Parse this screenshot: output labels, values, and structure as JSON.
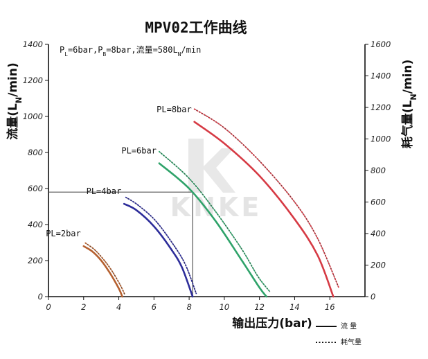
{
  "chart_data": {
    "type": "line",
    "title": "MPV02工作曲线",
    "annotation": "PL=6bar,PB=8bar,流量=580LN/min",
    "annotation_parts": [
      "P",
      "L",
      "=6bar,P",
      "B",
      "=8bar,流量=580L",
      "N",
      "/min"
    ],
    "xlabel": "输出压力(bar)",
    "ylabel_left_parts": [
      "流量(L",
      "N",
      "/min)"
    ],
    "ylabel_right_parts": [
      "耗气量(L",
      "N",
      "/min)"
    ],
    "x_ticks": [
      "0",
      "2",
      "4",
      "6",
      "8",
      "10",
      "12",
      "14",
      "16"
    ],
    "y_left_ticks": [
      "0",
      "200",
      "400",
      "600",
      "800",
      "1000",
      "1200",
      "1400"
    ],
    "y_right_ticks": [
      "0",
      "200",
      "400",
      "600",
      "800",
      "1000",
      "1200",
      "1400",
      "1600"
    ],
    "xlim": [
      0,
      18
    ],
    "ylim_left": [
      0,
      1400
    ],
    "ylim_right": [
      0,
      1600
    ],
    "grid": false,
    "reference_point": {
      "x": 8.2,
      "y": 580
    },
    "watermark": "KNKE",
    "legend": {
      "placement": "bottom-right",
      "solid_label": "流 量",
      "dotted_label": "耗气量"
    },
    "series": [
      {
        "label": "PL=2bar",
        "color": "#b5602f",
        "flow_x": [
          2.0,
          2.5,
          3.0,
          3.5,
          4.0,
          4.2
        ],
        "flow_y": [
          280,
          250,
          200,
          130,
          45,
          0
        ],
        "consumption_x": [
          2.1,
          2.6,
          3.1,
          3.6,
          4.1,
          4.35
        ],
        "consumption_y": [
          340,
          300,
          240,
          165,
          70,
          10
        ]
      },
      {
        "label": "PL=4bar",
        "color": "#2d2d9a",
        "flow_x": [
          4.3,
          5.0,
          6.0,
          7.0,
          7.6,
          8.2
        ],
        "flow_y": [
          515,
          480,
          390,
          260,
          160,
          0
        ],
        "consumption_x": [
          4.4,
          5.1,
          6.1,
          7.1,
          7.8,
          8.4
        ],
        "consumption_y": [
          630,
          580,
          480,
          330,
          200,
          20
        ]
      },
      {
        "label": "PL=6bar",
        "color": "#2fa36a",
        "flow_x": [
          6.3,
          8.0,
          9.5,
          11.0,
          12.0,
          12.4
        ],
        "flow_y": [
          740,
          600,
          420,
          200,
          50,
          0
        ],
        "consumption_x": [
          6.3,
          8.0,
          9.5,
          11.0,
          11.9,
          12.6
        ],
        "consumption_y": [
          920,
          750,
          540,
          300,
          130,
          30
        ]
      },
      {
        "label": "PL=8bar",
        "color": "#d63a44",
        "flow_x": [
          8.3,
          10.0,
          12.0,
          14.0,
          15.3,
          16.2
        ],
        "flow_y": [
          970,
          850,
          670,
          430,
          230,
          0
        ],
        "consumption_x": [
          8.3,
          10.0,
          12.0,
          14.0,
          15.3,
          16.5
        ],
        "consumption_y": [
          1190,
          1070,
          860,
          600,
          370,
          60
        ]
      }
    ]
  }
}
